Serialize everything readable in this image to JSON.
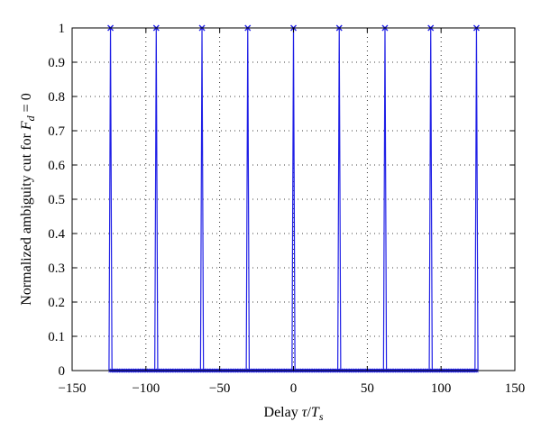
{
  "chart_data": {
    "type": "line",
    "title": "",
    "xlabel": {
      "pre": "Delay ",
      "tau": "τ",
      "slash": "/",
      "T": "T",
      "sub": "s"
    },
    "ylabel": {
      "pre": "Normalized ambiguity cut for ",
      "F": "F",
      "sub": "d",
      "post": " = 0"
    },
    "xlim": [
      -150,
      150
    ],
    "ylim": [
      0,
      1
    ],
    "xticks": [
      -150,
      -100,
      -50,
      0,
      50,
      100,
      150
    ],
    "xtick_labels": [
      "−150",
      "−100",
      "−50",
      "0",
      "50",
      "100",
      "150"
    ],
    "yticks": [
      0,
      0.1,
      0.2,
      0.3,
      0.4,
      0.5,
      0.6,
      0.7,
      0.8,
      0.9,
      1
    ],
    "ytick_labels": [
      "0",
      "0.1",
      "0.2",
      "0.3",
      "0.4",
      "0.5",
      "0.6",
      "0.7",
      "0.8",
      "0.9",
      "1"
    ],
    "grid": true,
    "legend": "none",
    "series": [
      {
        "color": "#1f1fe6",
        "marker": "x",
        "peaks_x": [
          -124,
          -93,
          -62,
          -31,
          0,
          31,
          62,
          93,
          124
        ],
        "peak_value": 1,
        "baseline_value": 0,
        "x_range": [
          -124,
          124
        ]
      }
    ]
  },
  "colors": {
    "line": "#1f1fe6",
    "axis": "#000000",
    "grid": "#000000",
    "background": "#ffffff"
  }
}
